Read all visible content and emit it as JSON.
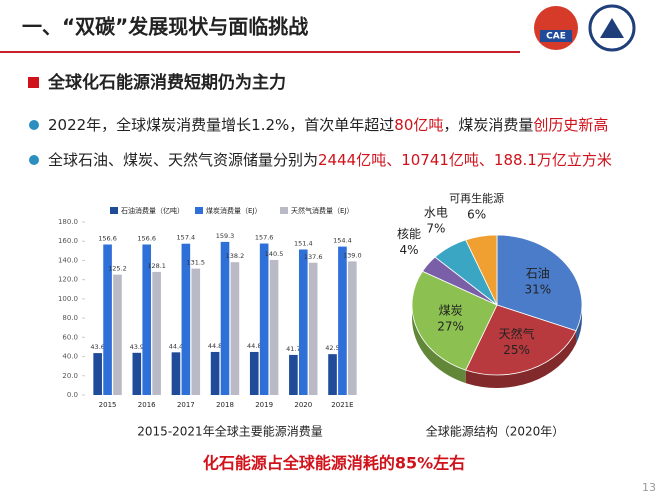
{
  "slide": {
    "title": "一、“双碳”发展现状与面临挑战",
    "logo": "CAE",
    "bullets": [
      {
        "parts": [
          "全球化石能源消费短期仍为主力"
        ]
      },
      {
        "parts": [
          "2022年，全球煤炭消费量增长1.2%，首次单年超过",
          "80亿吨",
          "，煤炭消费量",
          "创历史新高"
        ]
      },
      {
        "parts": [
          "全球石油、煤炭、天然气资源储量分别为",
          "2444亿吨、10741亿吨、188.1万亿立方米"
        ]
      }
    ],
    "conclusion": "化石能源占全球能源消耗的85%左右",
    "page": "13"
  },
  "chart_data": [
    {
      "type": "bar",
      "title": "2015-2021年全球主要能源消费量",
      "categories": [
        "2015",
        "2016",
        "2017",
        "2018",
        "2019",
        "2020",
        "2021E"
      ],
      "series": [
        {
          "name": "石油消费量（亿吨）",
          "color": "#1f4b99",
          "values": [
            43.6,
            43.9,
            44.4,
            44.8,
            44.8,
            41.7,
            42.5
          ]
        },
        {
          "name": "煤炭消费量（EJ）",
          "color": "#2e6fd8",
          "values": [
            156.6,
            156.6,
            157.4,
            159.3,
            157.6,
            151.4,
            154.4
          ]
        },
        {
          "name": "天然气消费量（EJ）",
          "color": "#b9bac6",
          "values": [
            125.2,
            128.1,
            131.5,
            138.2,
            140.5,
            137.6,
            139.0
          ],
          "value_labels": [
            "125.2",
            "128.1",
            "131.5",
            "138.2",
            "140.5",
            "137.6",
            "139.0"
          ]
        }
      ],
      "ylim": [
        0,
        180
      ],
      "yticks": [
        {
          "value": 0,
          "label": "0.0"
        },
        {
          "value": 20,
          "label": "20.0"
        },
        {
          "value": 40,
          "label": "40.0"
        },
        {
          "value": 60,
          "label": "60.0"
        },
        {
          "value": 80,
          "label": "80.0"
        },
        {
          "value": 100,
          "label": "100.0"
        },
        {
          "value": 120,
          "label": "120.0"
        },
        {
          "value": 140,
          "label": "140.0"
        },
        {
          "value": 160,
          "label": "160.0"
        },
        {
          "value": 180,
          "label": "180.0"
        }
      ]
    },
    {
      "type": "pie",
      "title": "全球能源结构（2020年）",
      "categories": [
        "石油",
        "天然气",
        "煤炭",
        "核能",
        "水电",
        "可再生能源"
      ],
      "values": [
        31,
        25,
        27,
        4,
        7,
        6
      ],
      "value_labels": [
        "31%",
        "25%",
        "27%",
        "4%",
        "7%",
        "6%"
      ],
      "colors": [
        "#4a7cc9",
        "#b83a3e",
        "#8cc152",
        "#7a5fa8",
        "#3aa6c4",
        "#f0a030"
      ]
    }
  ]
}
